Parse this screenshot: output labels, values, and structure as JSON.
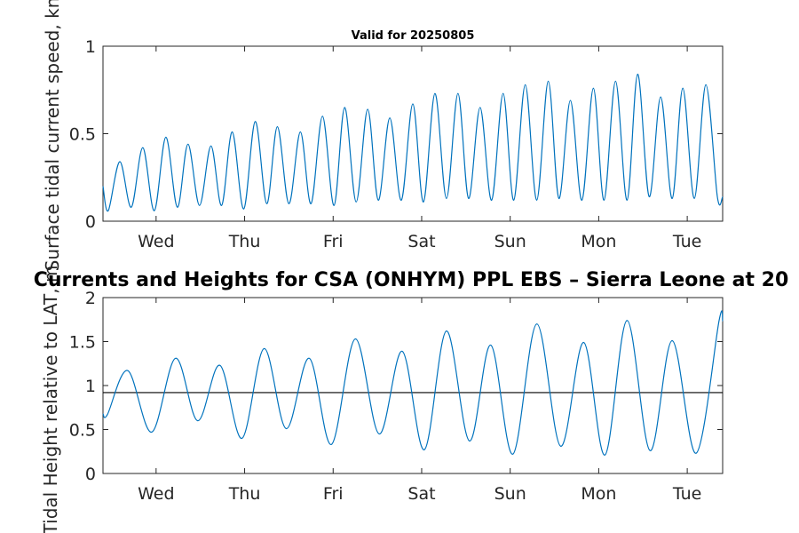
{
  "chart_data": [
    {
      "type": "line",
      "title": "Valid for 20250805",
      "ylabel": "Surface tidal current speed, kn",
      "ylim": [
        0,
        1
      ],
      "yticks": [
        0,
        0.5,
        1
      ],
      "ytick_labels": [
        "0",
        "0.5",
        "1"
      ],
      "xlim": [
        0,
        7
      ],
      "x_unit": "days from left edge",
      "xticks": [
        0.6,
        1.6,
        2.6,
        3.6,
        4.6,
        5.6,
        6.6
      ],
      "xtick_labels": [
        "Wed",
        "Thu",
        "Fri",
        "Sat",
        "Sun",
        "Mon",
        "Tue"
      ],
      "grid": false,
      "series_color": "#0072BD",
      "series": [
        {
          "x": [
            0.0,
            0.06,
            0.19,
            0.32,
            0.45,
            0.58,
            0.71,
            0.84,
            0.96,
            1.09,
            1.22,
            1.34,
            1.46,
            1.59,
            1.72,
            1.85,
            1.97,
            2.1,
            2.23,
            2.35,
            2.48,
            2.61,
            2.73,
            2.86,
            2.99,
            3.11,
            3.24,
            3.37,
            3.5,
            3.62,
            3.75,
            3.88,
            4.01,
            4.13,
            4.26,
            4.39,
            4.52,
            4.64,
            4.77,
            4.9,
            5.03,
            5.15,
            5.28,
            5.41,
            5.54,
            5.66,
            5.79,
            5.92,
            6.04,
            6.17,
            6.3,
            6.43,
            6.55,
            6.68,
            6.81,
            6.94,
            7.0
          ],
          "y": [
            0.2,
            0.06,
            0.34,
            0.08,
            0.42,
            0.06,
            0.48,
            0.08,
            0.44,
            0.09,
            0.43,
            0.09,
            0.51,
            0.07,
            0.57,
            0.1,
            0.54,
            0.1,
            0.51,
            0.1,
            0.6,
            0.09,
            0.65,
            0.11,
            0.64,
            0.12,
            0.59,
            0.12,
            0.67,
            0.11,
            0.73,
            0.13,
            0.73,
            0.13,
            0.65,
            0.12,
            0.73,
            0.12,
            0.78,
            0.12,
            0.8,
            0.13,
            0.69,
            0.12,
            0.76,
            0.12,
            0.8,
            0.12,
            0.84,
            0.14,
            0.71,
            0.13,
            0.76,
            0.13,
            0.78,
            0.14,
            0.14
          ]
        }
      ]
    },
    {
      "type": "line",
      "title": "Currents and Heights for CSA (ONHYM) PPL EBS  – Sierra Leone at 20",
      "ylabel": "Tidal Height relative to LAT, m",
      "ylim": [
        0,
        2
      ],
      "yticks": [
        0,
        0.5,
        1,
        1.5,
        2
      ],
      "ytick_labels": [
        "0",
        "0.5",
        "1",
        "1.5",
        "2"
      ],
      "xlim": [
        0,
        7
      ],
      "x_unit": "days from left edge",
      "xticks": [
        0.6,
        1.6,
        2.6,
        3.6,
        4.6,
        5.6,
        6.6
      ],
      "xtick_labels": [
        "Wed",
        "Thu",
        "Fri",
        "Sat",
        "Sun",
        "Mon",
        "Tue"
      ],
      "grid": false,
      "series_color": "#0072BD",
      "reference_line": {
        "y": 0.92,
        "color": "#000000"
      },
      "series": [
        {
          "x": [
            0.0,
            0.05,
            0.28,
            0.55,
            0.82,
            1.07,
            1.32,
            1.57,
            1.82,
            2.07,
            2.33,
            2.58,
            2.85,
            3.12,
            3.38,
            3.63,
            3.88,
            4.14,
            4.38,
            4.63,
            4.9,
            5.17,
            5.43,
            5.67,
            5.92,
            6.18,
            6.43,
            6.7,
            6.96,
            7.0
          ],
          "y": [
            0.68,
            0.67,
            1.17,
            0.47,
            1.31,
            0.6,
            1.23,
            0.4,
            1.42,
            0.51,
            1.31,
            0.33,
            1.53,
            0.45,
            1.39,
            0.27,
            1.62,
            0.37,
            1.46,
            0.22,
            1.7,
            0.31,
            1.49,
            0.21,
            1.74,
            0.26,
            1.51,
            0.23,
            1.74,
            1.73
          ]
        }
      ]
    }
  ]
}
